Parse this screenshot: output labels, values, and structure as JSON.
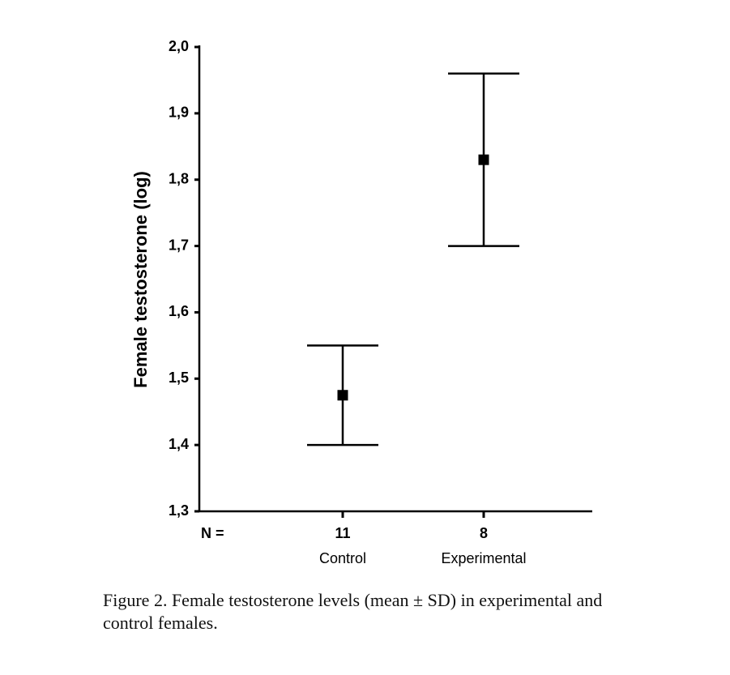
{
  "chart_data": {
    "type": "errorbar",
    "ylabel": "Female testosterone (log)",
    "categories": [
      "Control",
      "Experimental"
    ],
    "values": [
      1.475,
      1.83
    ],
    "errors": [
      0.075,
      0.13
    ],
    "n_label": "N =",
    "n": [
      11,
      8
    ],
    "color": "#000000",
    "ylim": [
      1.3,
      2.0
    ],
    "yticks": [
      {
        "value": 1.3,
        "label": "1,3"
      },
      {
        "value": 1.4,
        "label": "1,4"
      },
      {
        "value": 1.5,
        "label": "1,5"
      },
      {
        "value": 1.6,
        "label": "1,6"
      },
      {
        "value": 1.7,
        "label": "1,7"
      },
      {
        "value": 1.8,
        "label": "1,8"
      },
      {
        "value": 1.9,
        "label": "1,9"
      },
      {
        "value": 2.0,
        "label": "2,0"
      }
    ],
    "caption": "Figure 2.  Female testosterone levels (mean ± SD) in experimental and control females."
  }
}
